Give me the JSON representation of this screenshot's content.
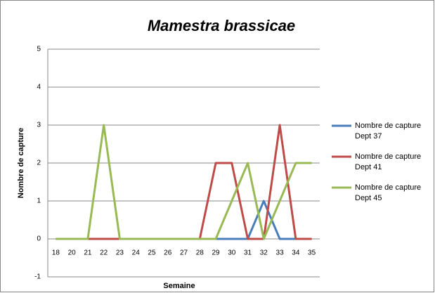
{
  "chart_data": {
    "type": "line",
    "title": "Mamestra brassicae",
    "x_label": "Semaine",
    "y_label": "Nombre de capture",
    "categories": [
      "18",
      "20",
      "21",
      "22",
      "23",
      "24",
      "25",
      "26",
      "27",
      "28",
      "29",
      "30",
      "31",
      "32",
      "33",
      "34",
      "35"
    ],
    "series": [
      {
        "name": "Nombre de capture Dept 37",
        "color": "#4a7ebb",
        "values": [
          0,
          0,
          0,
          0,
          0,
          0,
          0,
          0,
          0,
          0,
          0,
          0,
          0,
          1,
          0,
          0,
          0
        ]
      },
      {
        "name": "Nombre de capture Dept 41",
        "color": "#be4b48",
        "values": [
          0,
          0,
          0,
          0,
          0,
          0,
          0,
          0,
          0,
          0,
          2,
          2,
          0,
          0,
          3,
          0,
          0
        ]
      },
      {
        "name": "Nombre de capture Dept 45",
        "color": "#98b954",
        "values": [
          0,
          0,
          0,
          3,
          0,
          0,
          0,
          0,
          0,
          0,
          0,
          1,
          2,
          0,
          1,
          2,
          2
        ]
      }
    ],
    "ylim": [
      -1,
      5
    ],
    "yticks": [
      -1,
      0,
      1,
      2,
      3,
      4,
      5
    ],
    "grid": true,
    "legend": "right"
  }
}
